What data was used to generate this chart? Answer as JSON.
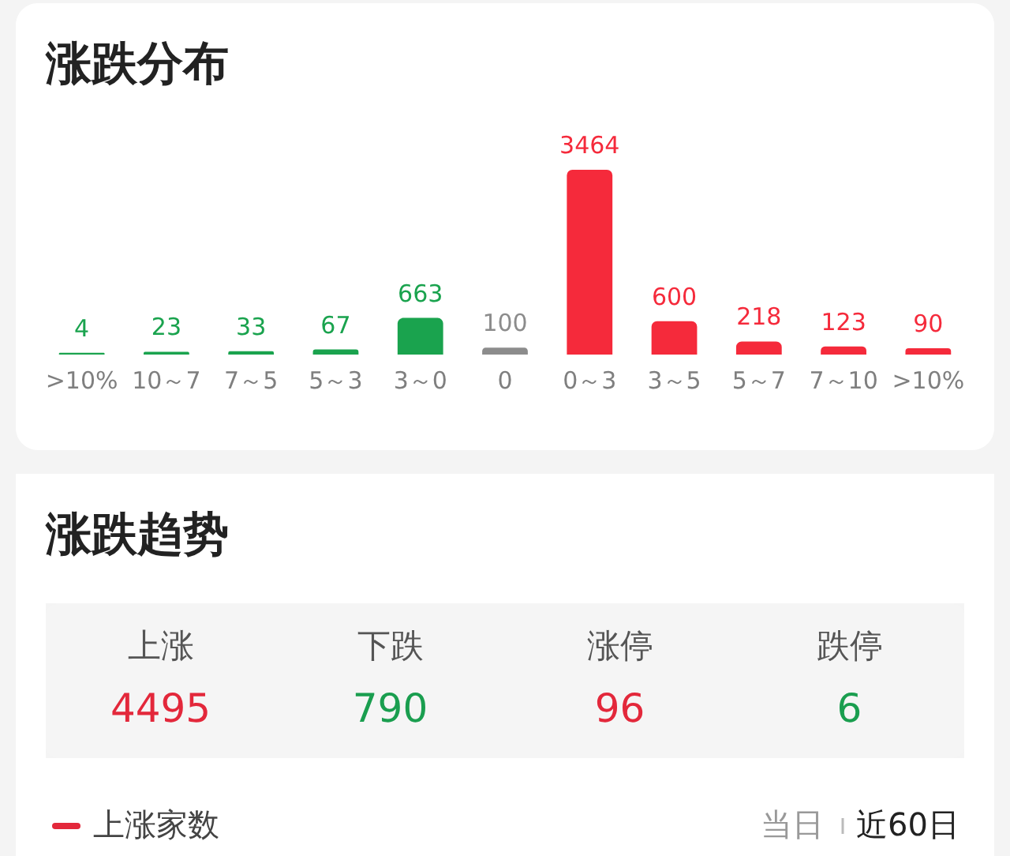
{
  "chart_data": [
    {
      "type": "bar",
      "title": "涨跌分布",
      "categories": [
        ">10%",
        "10～7",
        "7～5",
        "5～3",
        "3～0",
        "0",
        "0～3",
        "3～5",
        "5～7",
        "7～10",
        ">10%"
      ],
      "values": [
        4,
        23,
        33,
        67,
        663,
        100,
        3464,
        600,
        218,
        123,
        90
      ],
      "colors": [
        "#1aa34e",
        "#1aa34e",
        "#1aa34e",
        "#1aa34e",
        "#1aa34e",
        "#8c8c8c",
        "#f52a3b",
        "#f52a3b",
        "#f52a3b",
        "#f52a3b",
        "#f52a3b"
      ],
      "data_labels": true
    },
    {
      "type": "other",
      "title": "涨跌趋势",
      "categories": [
        "上涨",
        "下跌",
        "涨停",
        "跌停"
      ],
      "values": [
        4495,
        790,
        96,
        6
      ],
      "colors": [
        "#e3283b",
        "#1a9e4f",
        "#e3283b",
        "#1a9e4f"
      ],
      "data_labels": true,
      "annotations": [
        "上涨家数",
        "当日",
        "近60日"
      ]
    }
  ]
}
